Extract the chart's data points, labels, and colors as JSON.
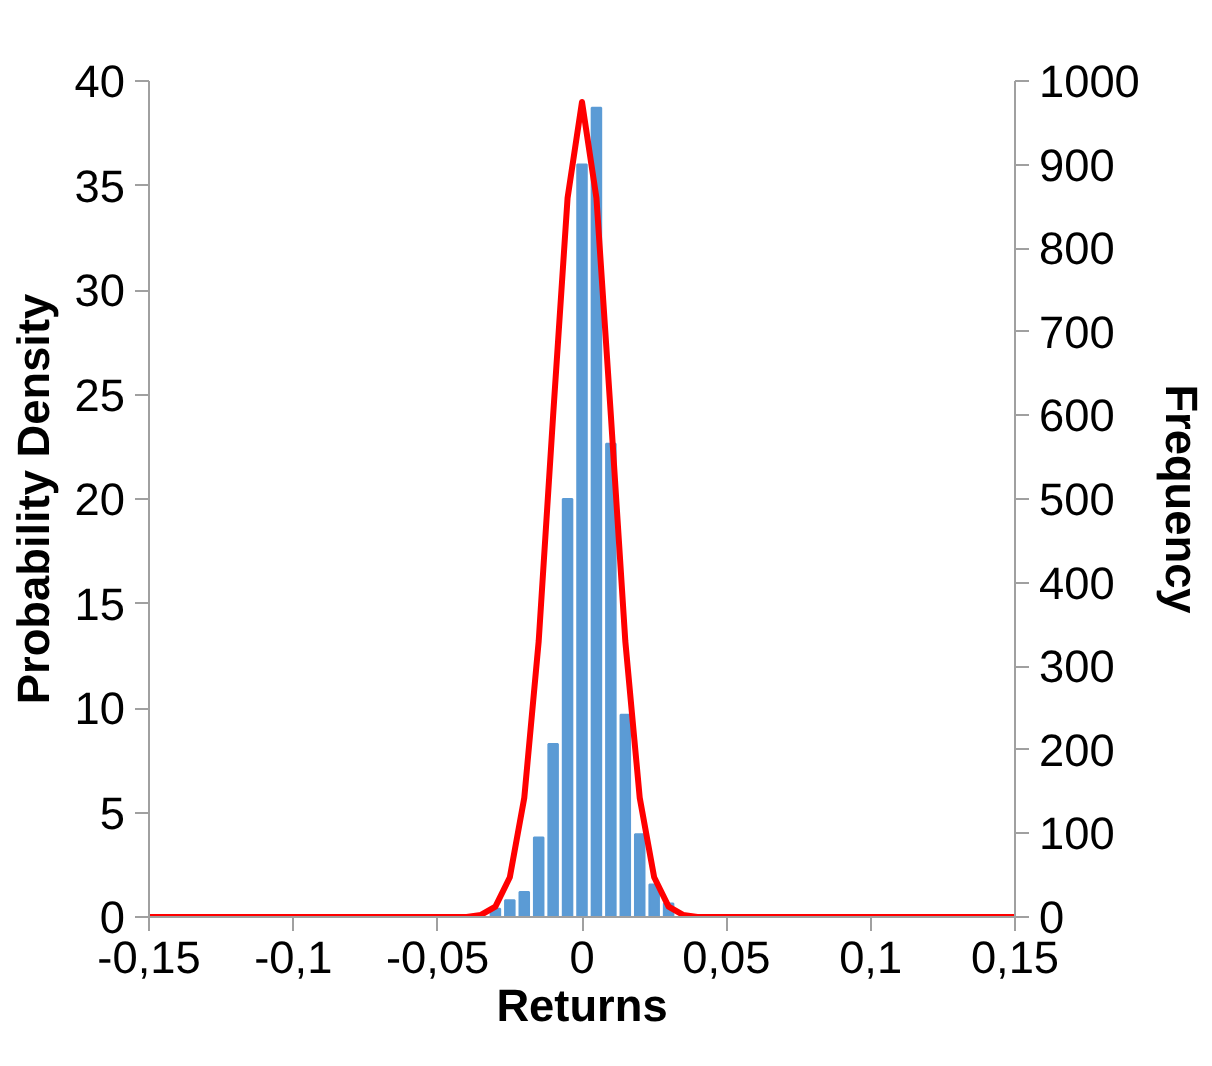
{
  "chart_data": {
    "type": "bar",
    "xlabel": "Returns",
    "ylabel": "Probability Density",
    "y2label": "Frequency",
    "xlim": [
      -0.15,
      0.15
    ],
    "xticks": [
      {
        "value": -0.15,
        "label": "-0,15"
      },
      {
        "value": -0.1,
        "label": "-0,1"
      },
      {
        "value": -0.05,
        "label": "-0,05"
      },
      0,
      {
        "value": 0.05,
        "label": "0,05"
      },
      {
        "value": 0.1,
        "label": "0,1"
      },
      {
        "value": 0.15,
        "label": "0,15"
      }
    ],
    "ylim": [
      0,
      40
    ],
    "yticks": [
      0,
      5,
      10,
      15,
      20,
      25,
      30,
      35,
      40
    ],
    "y2lim": [
      0,
      1000
    ],
    "y2ticks": [
      0,
      100,
      200,
      300,
      400,
      500,
      600,
      700,
      800,
      900,
      1000
    ],
    "series": [
      {
        "axis": "y2",
        "color": "#5b9bd5",
        "x": [
          -0.03,
          -0.025,
          -0.02,
          -0.015,
          -0.01,
          -0.005,
          0,
          0.005,
          0.01,
          0.015,
          0.02,
          0.025,
          0.03
        ],
        "values": [
          10,
          20,
          30,
          95,
          207,
          500,
          900,
          968,
          566,
          242,
          99,
          39,
          16
        ]
      },
      {
        "type": "line",
        "axis": "y",
        "color": "#ff0000",
        "x": [
          -0.15,
          -0.05,
          -0.04,
          -0.035,
          -0.03,
          -0.025,
          -0.02,
          -0.015,
          -0.01,
          -0.005,
          0,
          0.005,
          0.01,
          0.015,
          0.02,
          0.025,
          0.03,
          0.035,
          0.04,
          0.05,
          0.15
        ],
        "values": [
          0,
          0,
          0,
          0.1,
          0.5,
          1.9,
          5.7,
          13.2,
          24,
          34.4,
          39,
          34.4,
          24,
          13.2,
          5.7,
          1.9,
          0.5,
          0.1,
          0,
          0,
          0
        ]
      }
    ]
  }
}
